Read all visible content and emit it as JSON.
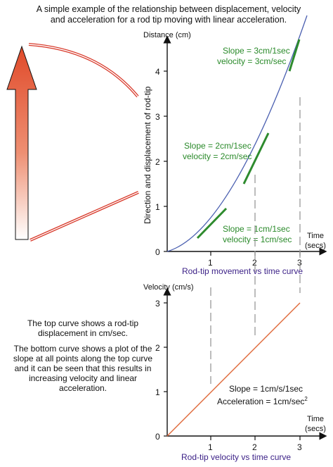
{
  "title": "A simple example of the relationship between displacement, velocity and acceleration for a rod tip moving with linear acceleration.",
  "side_text": [
    "The top curve shows a rod-tip displacement in cm/sec.",
    "The bottom curve shows a plot of the slope at all points along the top curve and it can be seen that this results in increasing  velocity and linear acceleration."
  ],
  "top_chart": {
    "y_title": "Distance (cm)",
    "y_side_label": "Direction and displacement of  rod-tip",
    "x_title": "Time",
    "x_unit": "(secs)",
    "caption": "Rod-tip movement vs time curve",
    "y_ticks": [
      "0",
      "1",
      "2",
      "3",
      "4"
    ],
    "x_ticks": [
      "1",
      "2",
      "3"
    ],
    "annotations": [
      {
        "slope": "Slope = 3cm/1sec",
        "velocity": "velocity = 3cm/sec"
      },
      {
        "slope": "Slope = 2cm/1sec",
        "velocity": "velocity = 2cm/sec"
      },
      {
        "slope": "Slope = 1cm/1sec",
        "velocity": "velocity = 1cm/sec"
      }
    ],
    "curve_color": "#4a5fb0",
    "tangent_color": "#2e8b2e"
  },
  "bottom_chart": {
    "y_title": "Velocity (cm/s)",
    "x_title": "Time",
    "x_unit": "(secs)",
    "caption": "Rod-tip velocity vs time curve",
    "y_ticks": [
      "0",
      "1",
      "2",
      "3"
    ],
    "x_ticks": [
      "1",
      "2",
      "3"
    ],
    "slope_label": "Slope = 1cm/s/1sec",
    "accel_label": "Acceleration = 1cm/sec",
    "accel_sup": "2",
    "line_color": "#e0693a"
  },
  "colors": {
    "arrow_top": "#e04a2a",
    "arrow_bottom": "#ffffff",
    "rod": "#d8392a"
  }
}
